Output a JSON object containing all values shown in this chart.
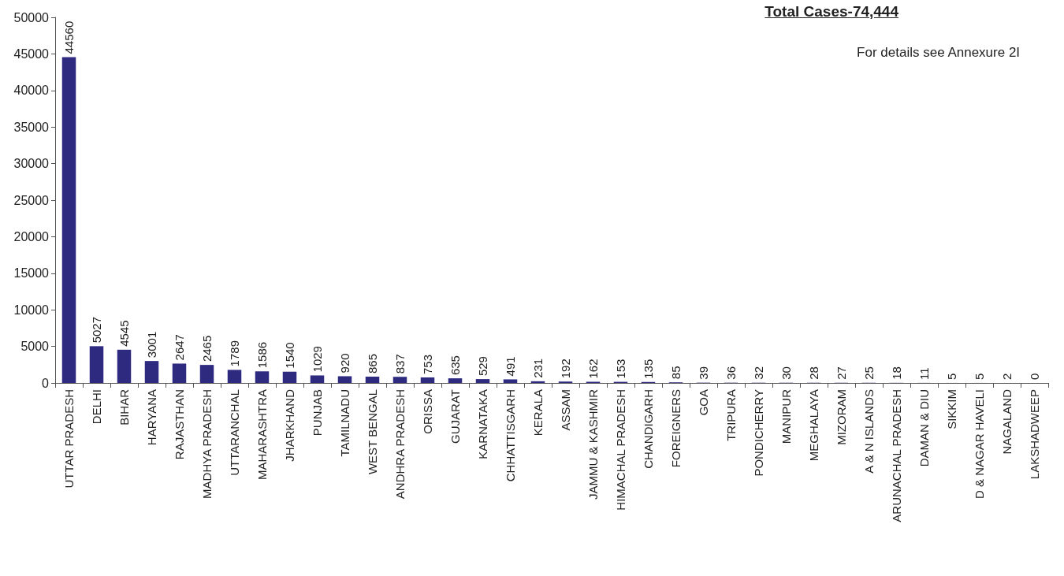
{
  "chart_data": {
    "type": "bar",
    "title": "Total Cases-74,444",
    "annotations": [
      "For details see Annexure 2I"
    ],
    "categories": [
      "UTTAR PRADESH",
      "DELHI",
      "BIHAR",
      "HARYANA",
      "RAJASTHAN",
      "MADHYA PRADESH",
      "UTTARANCHAL",
      "MAHARASHTRA",
      "JHARKHAND",
      "PUNJAB",
      "TAMILNADU",
      "WEST BENGAL",
      "ANDHRA PRADESH",
      "ORISSA",
      "GUJARAT",
      "KARNATAKA",
      "CHHATTISGARH",
      "KERALA",
      "ASSAM",
      "JAMMU & KASHMIR",
      "HIMACHAL PRADESH",
      "CHANDIGARH",
      "FOREIGNERS",
      "GOA",
      "TRIPURA",
      "PONDICHERRY",
      "MANIPUR",
      "MEGHALAYA",
      "MIZORAM",
      "A & N ISLANDS",
      "ARUNACHAL PRADESH",
      "DAMAN & DIU",
      "SIKKIM",
      "D & NAGAR HAVELI",
      "NAGALAND",
      "LAKSHADWEEP"
    ],
    "values": [
      44560,
      5027,
      4545,
      3001,
      2647,
      2465,
      1789,
      1586,
      1540,
      1029,
      920,
      865,
      837,
      753,
      635,
      529,
      491,
      231,
      192,
      162,
      153,
      135,
      85,
      39,
      36,
      32,
      30,
      28,
      27,
      25,
      18,
      11,
      5,
      5,
      2,
      0
    ],
    "color": "#2e2a80",
    "ylim": [
      0,
      50000
    ],
    "yticks": [
      0,
      5000,
      10000,
      15000,
      20000,
      25000,
      30000,
      35000,
      40000,
      45000,
      50000
    ],
    "grid": false,
    "data_labels": true
  }
}
